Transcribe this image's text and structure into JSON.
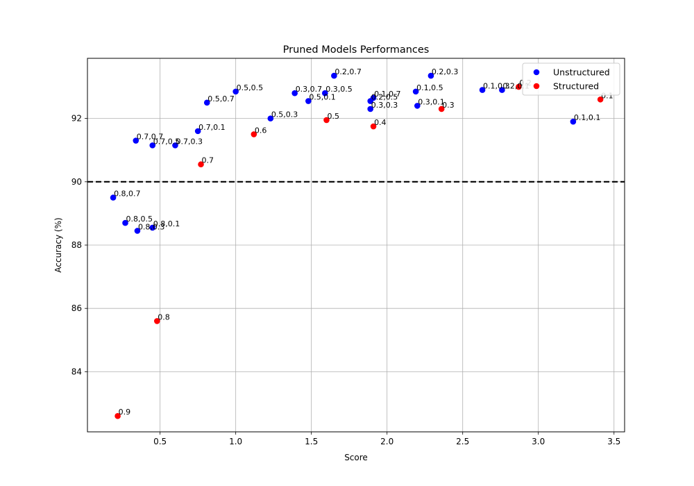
{
  "chart_data": {
    "type": "scatter",
    "title": "Pruned Models Performances",
    "xlabel": "Score",
    "ylabel": "Accuracy (%)",
    "xlim": [
      0.02,
      3.57
    ],
    "ylim": [
      82.1,
      93.9
    ],
    "xticks": [
      0.5,
      1.0,
      1.5,
      2.0,
      2.5,
      3.0,
      3.5
    ],
    "xtick_labels": [
      "0.5",
      "1.0",
      "1.5",
      "2.0",
      "2.5",
      "3.0",
      "3.5"
    ],
    "yticks": [
      84,
      86,
      88,
      90,
      92
    ],
    "ytick_labels": [
      "84",
      "86",
      "88",
      "90",
      "92"
    ],
    "grid": true,
    "legend_position": "top-right",
    "reference_line": {
      "y": 90,
      "style": "dashed",
      "color": "#000000"
    },
    "series": [
      {
        "name": "Unstructured",
        "color": "#0000ff",
        "points": [
          {
            "x": 0.19,
            "y": 89.5,
            "label": "0.8,0.7"
          },
          {
            "x": 0.27,
            "y": 88.7,
            "label": "0.8,0.5"
          },
          {
            "x": 0.35,
            "y": 88.45,
            "label": "0.8,0.3"
          },
          {
            "x": 0.45,
            "y": 88.55,
            "label": "0.8,0.1"
          },
          {
            "x": 0.34,
            "y": 91.3,
            "label": "0.7,0.7"
          },
          {
            "x": 0.45,
            "y": 91.15,
            "label": "0.7,0.5"
          },
          {
            "x": 0.6,
            "y": 91.15,
            "label": "0.7,0.3"
          },
          {
            "x": 0.75,
            "y": 91.6,
            "label": "0.7,0.1"
          },
          {
            "x": 0.81,
            "y": 92.5,
            "label": "0.5,0.7"
          },
          {
            "x": 1.0,
            "y": 92.85,
            "label": "0.5,0.5"
          },
          {
            "x": 1.23,
            "y": 92.0,
            "label": "0.5,0.3"
          },
          {
            "x": 1.48,
            "y": 92.55,
            "label": "0.5,0.1"
          },
          {
            "x": 1.39,
            "y": 92.8,
            "label": "0.3,0.7"
          },
          {
            "x": 1.59,
            "y": 92.8,
            "label": "0.3,0.5"
          },
          {
            "x": 1.89,
            "y": 92.3,
            "label": "0.3,0.3"
          },
          {
            "x": 2.2,
            "y": 92.4,
            "label": "0.3,0.1"
          },
          {
            "x": 1.65,
            "y": 93.35,
            "label": "0.2,0.7"
          },
          {
            "x": 1.89,
            "y": 92.55,
            "label": "0.2,0.5"
          },
          {
            "x": 2.29,
            "y": 93.35,
            "label": "0.2,0.3"
          },
          {
            "x": 2.76,
            "y": 92.9,
            "label": "0.2,0.1"
          },
          {
            "x": 1.91,
            "y": 92.65,
            "label": "0.1,0.7"
          },
          {
            "x": 2.19,
            "y": 92.85,
            "label": "0.1,0.5"
          },
          {
            "x": 2.63,
            "y": 92.9,
            "label": "0.1,0.3"
          },
          {
            "x": 3.23,
            "y": 91.9,
            "label": "0.1,0.1"
          }
        ]
      },
      {
        "name": "Structured",
        "color": "#ff0000",
        "points": [
          {
            "x": 0.22,
            "y": 82.6,
            "label": "0.9"
          },
          {
            "x": 0.48,
            "y": 85.6,
            "label": "0.8"
          },
          {
            "x": 0.77,
            "y": 90.55,
            "label": "0.7"
          },
          {
            "x": 1.12,
            "y": 91.5,
            "label": "0.6"
          },
          {
            "x": 1.6,
            "y": 91.95,
            "label": "0.5"
          },
          {
            "x": 1.91,
            "y": 91.75,
            "label": "0.4"
          },
          {
            "x": 2.36,
            "y": 92.3,
            "label": "0.3"
          },
          {
            "x": 2.87,
            "y": 93.0,
            "label": "0.2"
          },
          {
            "x": 3.41,
            "y": 92.6,
            "label": "0.1"
          }
        ]
      }
    ]
  }
}
